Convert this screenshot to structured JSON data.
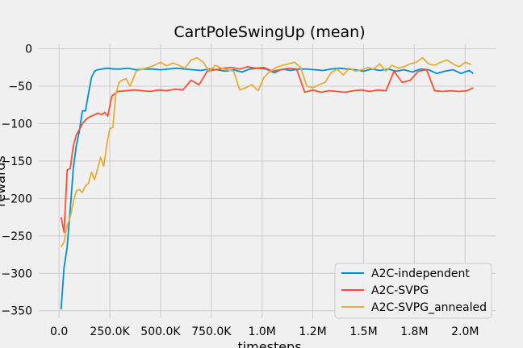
{
  "chart_data": {
    "type": "line",
    "title": "CartPoleSwingUp (mean)",
    "xlabel": "timesteps",
    "ylabel": "rewards",
    "xlim": [
      -100000,
      2150000
    ],
    "ylim": [
      -360,
      6
    ],
    "xticks": [
      0,
      250000,
      500000,
      750000,
      1000000,
      1250000,
      1500000,
      1750000,
      2000000
    ],
    "xtick_labels": [
      "0.0",
      "250.0K",
      "500.0K",
      "750.0K",
      "1.0M",
      "1.2M",
      "1.5M",
      "1.8M",
      "2.0M"
    ],
    "yticks": [
      0,
      -50,
      -100,
      -150,
      -200,
      -250,
      -300,
      -350
    ],
    "ytick_labels": [
      "0",
      "−50",
      "−100",
      "−150",
      "−200",
      "−250",
      "−300",
      "−350"
    ],
    "grid": true,
    "legend_position": "lower-right",
    "series": [
      {
        "name": "A2C-independent",
        "color": "#008fd5",
        "x": [
          10000,
          25000,
          40000,
          55000,
          70000,
          85000,
          100000,
          115000,
          130000,
          145000,
          160000,
          175000,
          190000,
          210000,
          240000,
          270000,
          300000,
          340000,
          380000,
          420000,
          460000,
          500000,
          540000,
          580000,
          620000,
          660000,
          700000,
          740000,
          780000,
          820000,
          860000,
          900000,
          940000,
          980000,
          1020000,
          1060000,
          1100000,
          1140000,
          1180000,
          1220000,
          1260000,
          1300000,
          1340000,
          1380000,
          1420000,
          1460000,
          1500000,
          1540000,
          1580000,
          1620000,
          1660000,
          1700000,
          1740000,
          1780000,
          1820000,
          1860000,
          1900000,
          1940000,
          1980000,
          2020000,
          2040000
        ],
        "y": [
          -348,
          -292,
          -265,
          -215,
          -160,
          -130,
          -110,
          -83,
          -83,
          -60,
          -38,
          -30,
          -28,
          -27,
          -26,
          -27,
          -27,
          -26,
          -28,
          -27,
          -27,
          -28,
          -27,
          -26,
          -27,
          -28,
          -29,
          -27,
          -28,
          -30,
          -28,
          -31,
          -27,
          -26,
          -27,
          -32,
          -27,
          -29,
          -27,
          -27,
          -28,
          -29,
          -27,
          -26,
          -27,
          -28,
          -30,
          -27,
          -29,
          -27,
          -30,
          -28,
          -31,
          -27,
          -28,
          -33,
          -30,
          -28,
          -33,
          -29,
          -33
        ]
      },
      {
        "name": "A2C-SVPG",
        "color": "#fc4f30",
        "x": [
          10000,
          25000,
          40000,
          55000,
          70000,
          85000,
          100000,
          115000,
          130000,
          145000,
          160000,
          175000,
          190000,
          210000,
          225000,
          240000,
          260000,
          290000,
          330000,
          370000,
          410000,
          450000,
          490000,
          530000,
          570000,
          610000,
          650000,
          690000,
          730000,
          770000,
          810000,
          850000,
          890000,
          930000,
          970000,
          1010000,
          1050000,
          1090000,
          1130000,
          1170000,
          1210000,
          1250000,
          1290000,
          1330000,
          1370000,
          1410000,
          1450000,
          1490000,
          1530000,
          1570000,
          1610000,
          1650000,
          1690000,
          1730000,
          1770000,
          1810000,
          1850000,
          1890000,
          1930000,
          1970000,
          2010000,
          2040000
        ],
        "y": [
          -225,
          -245,
          -162,
          -160,
          -130,
          -115,
          -108,
          -100,
          -95,
          -92,
          -90,
          -88,
          -86,
          -88,
          -85,
          -90,
          -63,
          -57,
          -56,
          -55,
          -56,
          -57,
          -55,
          -56,
          -54,
          -55,
          -42,
          -48,
          -30,
          -28,
          -26,
          -25,
          -27,
          -24,
          -26,
          -25,
          -30,
          -28,
          -26,
          -27,
          -58,
          -55,
          -58,
          -56,
          -57,
          -58,
          -56,
          -55,
          -57,
          -55,
          -56,
          -30,
          -45,
          -42,
          -30,
          -28,
          -56,
          -57,
          -56,
          -57,
          -56,
          -52
        ]
      },
      {
        "name": "A2C-SVPG_annealed",
        "color": "#e5ae38",
        "x": [
          10000,
          25000,
          40000,
          55000,
          70000,
          85000,
          100000,
          115000,
          130000,
          145000,
          160000,
          175000,
          190000,
          205000,
          220000,
          235000,
          250000,
          265000,
          280000,
          295000,
          310000,
          330000,
          350000,
          380000,
          410000,
          440000,
          470000,
          500000,
          530000,
          560000,
          590000,
          620000,
          650000,
          680000,
          710000,
          740000,
          770000,
          800000,
          830000,
          860000,
          890000,
          920000,
          950000,
          980000,
          1010000,
          1040000,
          1070000,
          1100000,
          1130000,
          1160000,
          1190000,
          1220000,
          1250000,
          1280000,
          1310000,
          1340000,
          1370000,
          1400000,
          1430000,
          1460000,
          1490000,
          1520000,
          1550000,
          1580000,
          1610000,
          1640000,
          1670000,
          1700000,
          1730000,
          1760000,
          1790000,
          1820000,
          1850000,
          1880000,
          1910000,
          1940000,
          1970000,
          2000000,
          2030000
        ],
        "y": [
          -265,
          -258,
          -236,
          -225,
          -205,
          -190,
          -188,
          -192,
          -183,
          -180,
          -165,
          -175,
          -160,
          -145,
          -157,
          -128,
          -107,
          -105,
          -60,
          -45,
          -42,
          -40,
          -50,
          -30,
          -27,
          -25,
          -22,
          -18,
          -23,
          -19,
          -22,
          -26,
          -15,
          -12,
          -18,
          -30,
          -22,
          -26,
          -28,
          -30,
          -55,
          -52,
          -48,
          -56,
          -38,
          -30,
          -25,
          -22,
          -20,
          -18,
          -25,
          -50,
          -52,
          -48,
          -45,
          -32,
          -27,
          -35,
          -26,
          -30,
          -28,
          -25,
          -27,
          -20,
          -30,
          -22,
          -26,
          -24,
          -20,
          -18,
          -12,
          -20,
          -22,
          -18,
          -15,
          -20,
          -24,
          -18,
          -21
        ]
      }
    ]
  }
}
